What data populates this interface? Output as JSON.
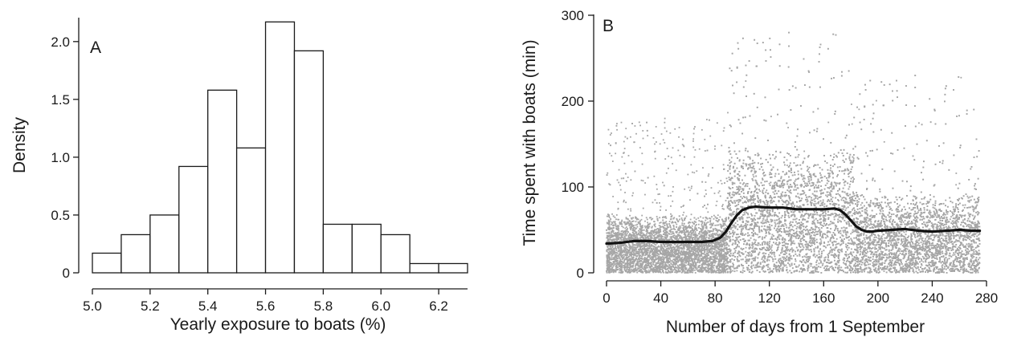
{
  "chart_data": [
    {
      "type": "bar",
      "panel_label": "A",
      "xlabel": "Yearly exposure to boats (%)",
      "ylabel": "Density",
      "xlim": [
        5.0,
        6.3
      ],
      "ylim": [
        0,
        2.2
      ],
      "xticks": [
        "5.0",
        "5.2",
        "5.4",
        "5.6",
        "5.8",
        "6.0",
        "6.2"
      ],
      "yticks": [
        "0",
        "0.5",
        "1.0",
        "1.5",
        "2.0"
      ],
      "bins": [
        {
          "start": 5.0,
          "end": 5.1,
          "density": 0.17
        },
        {
          "start": 5.1,
          "end": 5.2,
          "density": 0.33
        },
        {
          "start": 5.2,
          "end": 5.3,
          "density": 0.5
        },
        {
          "start": 5.3,
          "end": 5.4,
          "density": 0.92
        },
        {
          "start": 5.4,
          "end": 5.5,
          "density": 1.58
        },
        {
          "start": 5.5,
          "end": 5.6,
          "density": 1.08
        },
        {
          "start": 5.6,
          "end": 5.7,
          "density": 2.17
        },
        {
          "start": 5.7,
          "end": 5.8,
          "density": 1.92
        },
        {
          "start": 5.8,
          "end": 5.9,
          "density": 0.42
        },
        {
          "start": 5.9,
          "end": 6.0,
          "density": 0.42
        },
        {
          "start": 6.0,
          "end": 6.1,
          "density": 0.33
        },
        {
          "start": 6.1,
          "end": 6.2,
          "density": 0.08
        },
        {
          "start": 6.2,
          "end": 6.3,
          "density": 0.08
        }
      ],
      "colors": {
        "bar_fill": "#ffffff",
        "bar_edge": "#1a1a1a"
      }
    },
    {
      "type": "scatter",
      "panel_label": "B",
      "xlabel": "Number of days from 1 September",
      "ylabel": "Time spent with boats (min)",
      "xlim": [
        0,
        280
      ],
      "ylim": [
        0,
        300
      ],
      "xticks": [
        "0",
        "40",
        "80",
        "120",
        "160",
        "200",
        "240",
        "280"
      ],
      "yticks": [
        "0",
        "100",
        "200",
        "300"
      ],
      "points_description_series": [
        {
          "segment_days": [
            0,
            89
          ],
          "typical_min": 35,
          "max_min": 180
        },
        {
          "segment_days": [
            89,
            183
          ],
          "typical_min": 75,
          "max_min": 280
        },
        {
          "segment_days": [
            183,
            275
          ],
          "typical_min": 48,
          "max_min": 230
        }
      ],
      "smoothed_trend": {
        "x": [
          0,
          10,
          20,
          30,
          40,
          50,
          60,
          70,
          78,
          84,
          88,
          92,
          96,
          100,
          105,
          110,
          120,
          130,
          140,
          150,
          160,
          168,
          172,
          176,
          180,
          184,
          188,
          192,
          196,
          200,
          210,
          220,
          230,
          240,
          250,
          260,
          270,
          275
        ],
        "y": [
          34,
          35,
          37,
          37,
          36,
          36,
          36,
          36,
          37,
          41,
          48,
          58,
          67,
          73,
          76,
          77,
          76,
          76,
          74,
          74,
          74,
          75,
          73,
          68,
          61,
          54,
          50,
          48,
          48,
          49,
          50,
          51,
          49,
          48,
          49,
          50,
          49,
          49
        ]
      },
      "colors": {
        "points": "#a6a6a6",
        "trend": "#111111"
      }
    }
  ]
}
